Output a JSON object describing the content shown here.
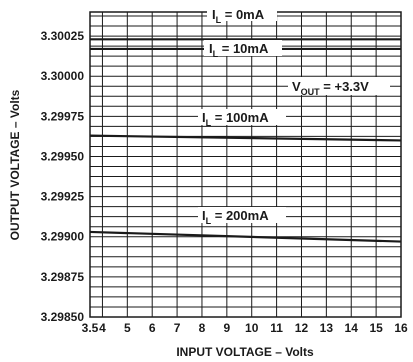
{
  "chart_data": {
    "type": "line",
    "xlabel": "INPUT VOLTAGE – Volts",
    "ylabel": "OUTPUT VOLTAGE – Volts",
    "xlim": [
      3.5,
      16
    ],
    "ylim": [
      3.2985,
      3.3004
    ],
    "x_ticks": [
      3.5,
      4,
      5,
      6,
      7,
      8,
      9,
      10,
      11,
      12,
      13,
      14,
      15,
      16
    ],
    "x_tick_labels": [
      "3.5",
      "4",
      "5",
      "6",
      "7",
      "8",
      "9",
      "10",
      "11",
      "12",
      "13",
      "14",
      "15",
      "16"
    ],
    "y_ticks": [
      3.2985,
      3.29875,
      3.299,
      3.29925,
      3.2995,
      3.29975,
      3.3,
      3.30025
    ],
    "y_tick_labels": [
      "3.29850",
      "3.29875",
      "3.29900",
      "3.29925",
      "3.29950",
      "3.29975",
      "3.30000",
      "3.30025"
    ],
    "grid": true,
    "series": [
      {
        "name": "I_L = 0mA",
        "x": [
          3.5,
          16
        ],
        "y": [
          3.30023,
          3.30023
        ]
      },
      {
        "name": "I_L = 10mA",
        "x": [
          3.5,
          16
        ],
        "y": [
          3.30017,
          3.30017
        ]
      },
      {
        "name": "I_L = 100mA",
        "x": [
          3.5,
          16
        ],
        "y": [
          3.29963,
          3.2996
        ]
      },
      {
        "name": "I_L = 200mA",
        "x": [
          3.5,
          16
        ],
        "y": [
          3.29903,
          3.29897
        ]
      }
    ],
    "annotations": {
      "vout_main": "V",
      "vout_sub": "OUT",
      "vout_value": " = +3.3V"
    }
  },
  "curve_labels": [
    {
      "main": "I",
      "sub": "L",
      "rest": " = 0mA"
    },
    {
      "main": "I",
      "sub": "L",
      "rest": " = 10mA"
    },
    {
      "main": "I",
      "sub": "L",
      "rest": " = 100mA"
    },
    {
      "main": "I",
      "sub": "L",
      "rest": " = 200mA"
    }
  ]
}
